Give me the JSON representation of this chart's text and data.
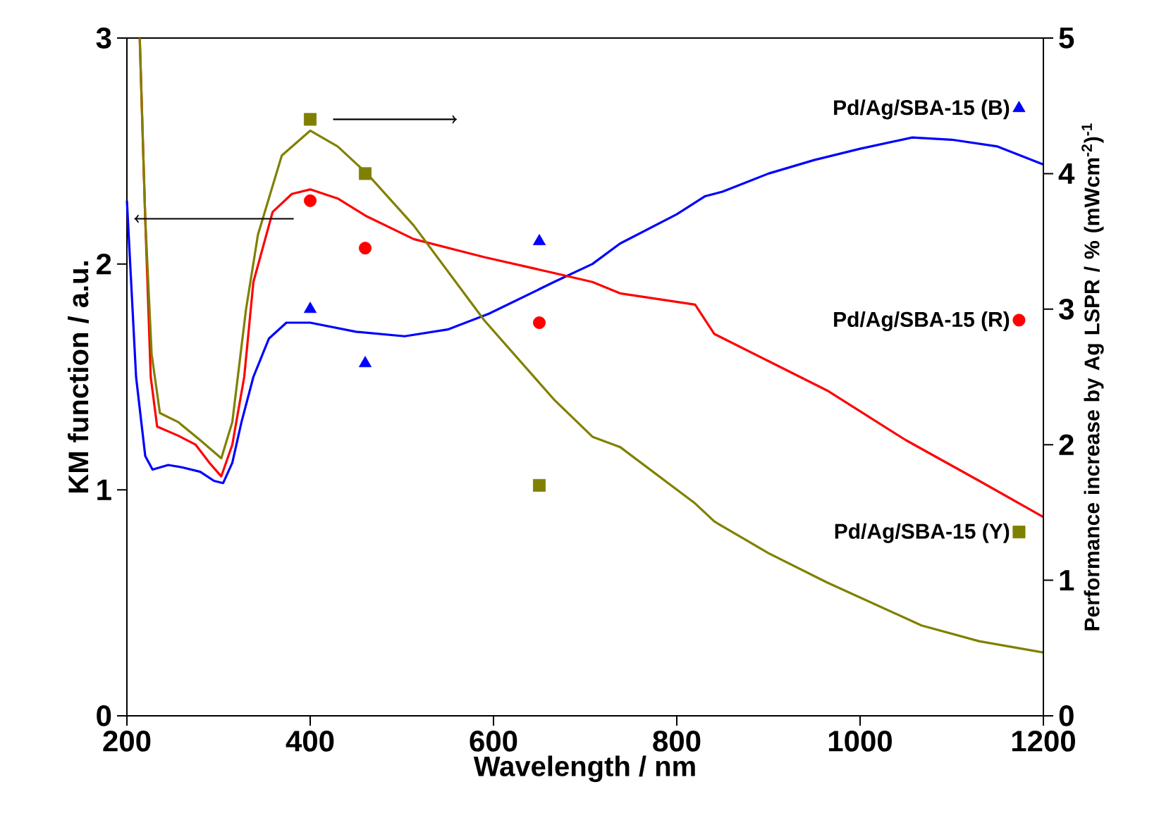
{
  "chart_data": {
    "type": "line",
    "xlabel": "Wavelength / nm",
    "ylabel": "KM function / a.u.",
    "y2label": "Performance increase by Ag LSPR / % (mWcm$^{-2}$)$^{-1}$",
    "xlim": [
      200,
      1200
    ],
    "xticks": [
      200,
      400,
      600,
      800,
      1000,
      1200
    ],
    "ylim": [
      0,
      3
    ],
    "yticks": [
      0,
      1,
      2,
      3
    ],
    "y2lim": [
      0,
      5
    ],
    "y2ticks": [
      0,
      1,
      2,
      3,
      4,
      5
    ],
    "legend": "right",
    "series": [
      {
        "color": "#0000ff",
        "marker": "none",
        "x": [
          200,
          210,
          220,
          228,
          245,
          260,
          280,
          295,
          305,
          315,
          325,
          338,
          355,
          374,
          400,
          450,
          503,
          550,
          595,
          666,
          708,
          738,
          800,
          831,
          850,
          900,
          950,
          1000,
          1057,
          1100,
          1150,
          1200
        ],
        "values": [
          2.28,
          1.5,
          1.15,
          1.09,
          1.11,
          1.1,
          1.08,
          1.04,
          1.03,
          1.12,
          1.3,
          1.5,
          1.67,
          1.74,
          1.74,
          1.7,
          1.68,
          1.71,
          1.78,
          1.92,
          2.0,
          2.09,
          2.22,
          2.3,
          2.32,
          2.4,
          2.46,
          2.51,
          2.56,
          2.55,
          2.52,
          2.44
        ]
      },
      {
        "color": "#ff0000",
        "marker": "none",
        "x": [
          214,
          220,
          226,
          233,
          256,
          275,
          290,
          303,
          315,
          328,
          338,
          359,
          380,
          400,
          430,
          462,
          513,
          590,
          666,
          708,
          738,
          820,
          841,
          900,
          964,
          1050,
          1130,
          1200
        ],
        "values": [
          3.0,
          2.2,
          1.5,
          1.28,
          1.24,
          1.2,
          1.12,
          1.06,
          1.2,
          1.5,
          1.92,
          2.23,
          2.31,
          2.33,
          2.29,
          2.21,
          2.11,
          2.03,
          1.96,
          1.92,
          1.87,
          1.82,
          1.69,
          1.57,
          1.44,
          1.22,
          1.04,
          0.88
        ]
      },
      {
        "color": "#808000",
        "marker": "none",
        "x": [
          214,
          220,
          227,
          236,
          256,
          280,
          303,
          315,
          330,
          343,
          369,
          400,
          430,
          462,
          513,
          590,
          666,
          708,
          738,
          820,
          841,
          900,
          964,
          1067,
          1130,
          1200
        ],
        "values": [
          3.0,
          2.2,
          1.6,
          1.34,
          1.3,
          1.22,
          1.14,
          1.3,
          1.8,
          2.13,
          2.48,
          2.59,
          2.52,
          2.4,
          2.17,
          1.75,
          1.4,
          1.235,
          1.19,
          0.94,
          0.86,
          0.72,
          0.59,
          0.4,
          0.33,
          0.28
        ]
      },
      {
        "type": "scatter",
        "name": "Pd/Ag/SBA-15 (B)",
        "color": "#0000ff",
        "marker": "triangle",
        "axis": "y2",
        "x": [
          400,
          460,
          650
        ],
        "values": [
          3.0,
          2.6,
          3.5
        ]
      },
      {
        "type": "scatter",
        "name": "Pd/Ag/SBA-15 (R)",
        "color": "#ff0000",
        "marker": "circle",
        "axis": "y2",
        "x": [
          400,
          460,
          650
        ],
        "values": [
          3.8,
          3.45,
          2.9
        ]
      },
      {
        "type": "scatter",
        "name": "Pd/Ag/SBA-15 (Y)",
        "color": "#808000",
        "marker": "square",
        "axis": "y2",
        "x": [
          400,
          460,
          650
        ],
        "values": [
          4.4,
          4.0,
          1.7
        ]
      }
    ]
  }
}
